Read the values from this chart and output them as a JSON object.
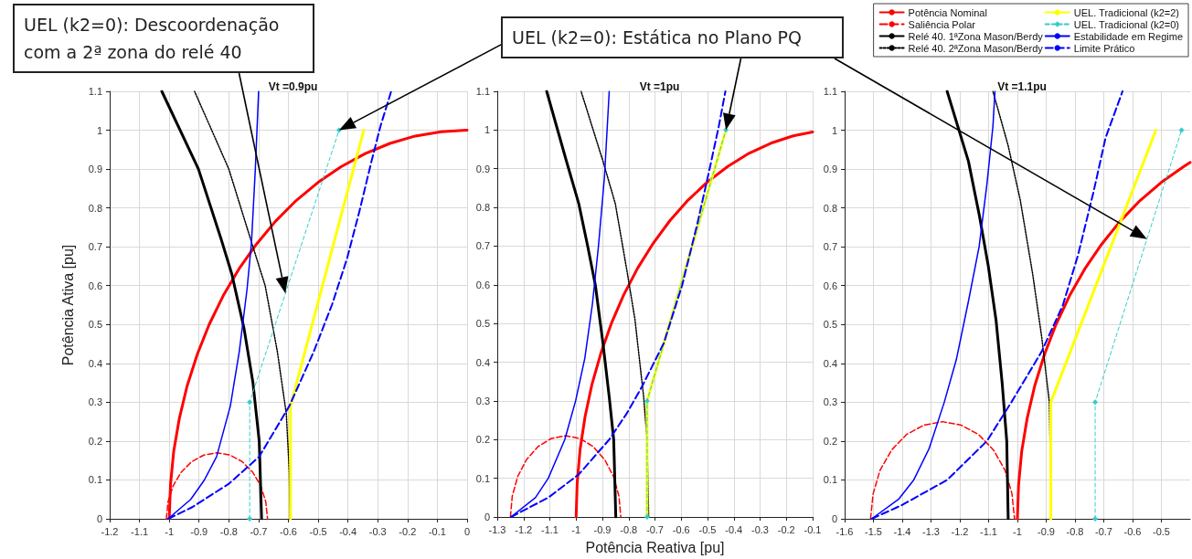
{
  "chart_data": [
    {
      "type": "line",
      "title": "Vt =0.9pu",
      "ylabel": "Potência Ativa [pu]",
      "grid": true,
      "xlim": [
        -1.2,
        0
      ],
      "ylim": [
        0,
        1.1
      ],
      "xticks": [
        -1.2,
        -1.1,
        -1,
        -0.9,
        -0.8,
        -0.7,
        -0.6,
        -0.5,
        -0.4,
        -0.3,
        -0.2,
        -0.1,
        0
      ],
      "yticks": [
        0,
        0.1,
        0.2,
        0.3,
        0.4,
        0.5,
        0.6,
        0.7,
        0.8,
        0.9,
        1,
        1.1
      ],
      "annotations": [
        "UEL (k2=0): Descoordenação com a 2ª zona do relé 40"
      ],
      "series": [
        {
          "color": "#ff0000",
          "line_style": "solid",
          "marker": "none",
          "x": [
            -1,
            -0.996,
            -0.985,
            -0.966,
            -0.94,
            -0.906,
            -0.866,
            -0.819,
            -0.766,
            -0.707,
            -0.643,
            -0.574,
            -0.5,
            -0.423,
            -0.342,
            -0.259,
            -0.174,
            -0.087,
            0
          ],
          "values": [
            0,
            0.087,
            0.174,
            0.259,
            0.342,
            0.423,
            0.5,
            0.574,
            0.643,
            0.707,
            0.766,
            0.819,
            0.866,
            0.906,
            0.94,
            0.966,
            0.985,
            0.996,
            1
          ]
        },
        {
          "color": "#ff0000",
          "line_style": "dashed",
          "marker": "none",
          "x": [
            -1.01,
            -1.004,
            -0.987,
            -0.96,
            -0.925,
            -0.884,
            -0.84,
            -0.796,
            -0.755,
            -0.72,
            -0.693,
            -0.676,
            -0.67
          ],
          "values": [
            0,
            0.044,
            0.085,
            0.12,
            0.147,
            0.164,
            0.17,
            0.164,
            0.147,
            0.12,
            0.085,
            0.044,
            0
          ]
        },
        {
          "color": "#000000",
          "line_style": "solid",
          "marker": "none",
          "x": [
            -0.69,
            -0.698,
            -0.719,
            -0.749,
            -0.79,
            -0.826,
            -0.902,
            -1.025
          ],
          "values": [
            0,
            0.2,
            0.35,
            0.49,
            0.63,
            0.72,
            0.9,
            1.1
          ]
        },
        {
          "color": "#000000",
          "line_style": "dotted",
          "marker": "none",
          "x": [
            -0.595,
            -0.597,
            -0.607,
            -0.637,
            -0.678,
            -0.719,
            -0.8,
            -0.915
          ],
          "values": [
            0,
            0.12,
            0.27,
            0.43,
            0.6,
            0.7,
            0.9,
            1.1
          ]
        },
        {
          "color": "#ffff00",
          "line_style": "solid",
          "marker": "none",
          "x": [
            -0.593,
            -0.593,
            -0.347
          ],
          "values": [
            0,
            0.29,
            1
          ]
        },
        {
          "color": "#33cccc",
          "line_style": "dashed",
          "marker": "diamond",
          "x": [
            -0.73,
            -0.73,
            -0.43
          ],
          "values": [
            0,
            0.3,
            1
          ]
        },
        {
          "color": "#0000ff",
          "line_style": "solid",
          "marker": "none",
          "x": [
            -1.004,
            -0.928,
            -0.882,
            -0.841,
            -0.795,
            -0.765,
            -0.739,
            -0.724,
            -0.711,
            -0.7
          ],
          "values": [
            0,
            0.05,
            0.1,
            0.16,
            0.29,
            0.43,
            0.59,
            0.71,
            0.9,
            1.1
          ]
        },
        {
          "color": "#0000ff",
          "line_style": "dashed",
          "marker": "none",
          "x": [
            -1.004,
            -0.923,
            -0.8,
            -0.698,
            -0.597,
            -0.515,
            -0.454,
            -0.403,
            -0.362,
            -0.321,
            -0.291,
            -0.255
          ],
          "values": [
            0,
            0.03,
            0.09,
            0.16,
            0.29,
            0.43,
            0.55,
            0.67,
            0.79,
            0.92,
            1.01,
            1.1
          ]
        }
      ]
    },
    {
      "type": "line",
      "title": "Vt =1pu",
      "xlabel": "Potência Reativa [pu]",
      "grid": true,
      "legend": "top right",
      "xlim": [
        -1.3,
        -0.1
      ],
      "ylim": [
        0,
        1.1
      ],
      "xticks": [
        -1.3,
        -1.2,
        -1.1,
        -1,
        -0.9,
        -0.8,
        -0.7,
        -0.6,
        -0.5,
        -0.4,
        -0.3,
        -0.2,
        -0.1
      ],
      "yticks": [
        0,
        0.1,
        0.2,
        0.3,
        0.4,
        0.5,
        0.6,
        0.7,
        0.8,
        0.9,
        1,
        1.1
      ],
      "annotations": [
        "UEL (k2=0): Estática no Plano PQ"
      ],
      "series": [
        {
          "name": "Potência Nominal",
          "color": "#ff0000",
          "line_style": "solid",
          "marker": "none",
          "x": [
            -1,
            -0.996,
            -0.985,
            -0.966,
            -0.94,
            -0.906,
            -0.866,
            -0.819,
            -0.766,
            -0.707,
            -0.643,
            -0.574,
            -0.5,
            -0.423,
            -0.342,
            -0.259,
            -0.174,
            -0.1
          ],
          "values": [
            0,
            0.087,
            0.174,
            0.259,
            0.342,
            0.423,
            0.5,
            0.574,
            0.643,
            0.707,
            0.766,
            0.819,
            0.866,
            0.906,
            0.94,
            0.966,
            0.985,
            0.995
          ]
        },
        {
          "name": "Saliência Polar",
          "color": "#ff0000",
          "line_style": "dashed",
          "marker": "none",
          "x": [
            -1.25,
            -1.243,
            -1.222,
            -1.189,
            -1.145,
            -1.094,
            -1.04,
            -0.986,
            -0.935,
            -0.891,
            -0.858,
            -0.837,
            -0.83
          ],
          "values": [
            0,
            0.054,
            0.105,
            0.148,
            0.182,
            0.203,
            0.21,
            0.203,
            0.182,
            0.148,
            0.105,
            0.054,
            0
          ]
        },
        {
          "name": "Relé 40. 1ªZona Mason/Berdy",
          "color": "#000000",
          "line_style": "solid",
          "marker": "none",
          "x": [
            -0.849,
            -0.857,
            -0.874,
            -0.898,
            -0.927,
            -0.956,
            -0.99,
            -1.037,
            -1.112
          ],
          "values": [
            0,
            0.2,
            0.31,
            0.45,
            0.6,
            0.7,
            0.81,
            0.92,
            1.1
          ]
        },
        {
          "name": "Relé 40. 2ªZona Mason/Berdy",
          "color": "#000000",
          "line_style": "dotted",
          "marker": "none",
          "x": [
            -0.724,
            -0.73,
            -0.743,
            -0.776,
            -0.805,
            -0.851,
            -0.898,
            -0.981
          ],
          "values": [
            0,
            0.2,
            0.31,
            0.51,
            0.63,
            0.81,
            0.92,
            1.1
          ]
        },
        {
          "name": "UEL. Tradicional (k2=2)",
          "color": "#ffff00",
          "line_style": "solid",
          "marker": "none",
          "x": [
            -0.73,
            -0.73,
            -0.43
          ],
          "values": [
            0,
            0.3,
            1
          ]
        },
        {
          "name": "UEL. Tradicional (k2=0)",
          "color": "#33cccc",
          "line_style": "dashed",
          "marker": "diamond",
          "x": [
            -0.73,
            -0.73,
            -0.43
          ],
          "values": [
            0,
            0.3,
            1
          ]
        },
        {
          "name": "Estabilidade em Regime",
          "color": "#0000ff",
          "line_style": "solid",
          "marker": "none",
          "x": [
            -1.248,
            -1.155,
            -1.106,
            -1.043,
            -1.002,
            -0.967,
            -0.938,
            -0.915,
            -0.892,
            -0.874
          ],
          "values": [
            0,
            0.05,
            0.1,
            0.2,
            0.3,
            0.41,
            0.55,
            0.7,
            0.88,
            1.1
          ]
        },
        {
          "name": "Limite Prático",
          "color": "#0000ff",
          "line_style": "dashed",
          "marker": "none",
          "x": [
            -1.248,
            -1.106,
            -0.99,
            -0.874,
            -0.805,
            -0.747,
            -0.666,
            -0.596,
            -0.538,
            -0.492,
            -0.457,
            -0.432
          ],
          "values": [
            0,
            0.05,
            0.11,
            0.2,
            0.27,
            0.34,
            0.45,
            0.6,
            0.76,
            0.9,
            1.01,
            1.1
          ]
        }
      ]
    },
    {
      "type": "line",
      "title": "Vt =1.1pu",
      "grid": true,
      "xlim": [
        -1.6,
        -0.4
      ],
      "ylim": [
        0,
        1.1
      ],
      "xticks": [
        -1.6,
        -1.5,
        -1.4,
        -1.3,
        -1.2,
        -1.1,
        -1,
        -0.9,
        -0.8,
        -0.7,
        -0.6,
        -0.5
      ],
      "yticks": [
        0,
        0.1,
        0.2,
        0.3,
        0.4,
        0.5,
        0.6,
        0.7,
        0.8,
        0.9,
        1,
        1.1
      ],
      "series": [
        {
          "color": "#ff0000",
          "line_style": "solid",
          "marker": "none",
          "x": [
            -1,
            -0.996,
            -0.985,
            -0.966,
            -0.94,
            -0.906,
            -0.866,
            -0.819,
            -0.766,
            -0.707,
            -0.643,
            -0.574,
            -0.5,
            -0.423,
            -0.4
          ],
          "values": [
            0,
            0.087,
            0.174,
            0.259,
            0.342,
            0.423,
            0.5,
            0.574,
            0.643,
            0.707,
            0.766,
            0.819,
            0.866,
            0.906,
            0.917
          ]
        },
        {
          "color": "#ff0000",
          "line_style": "dashed",
          "marker": "none",
          "x": [
            -1.51,
            -1.501,
            -1.477,
            -1.437,
            -1.385,
            -1.325,
            -1.26,
            -1.195,
            -1.135,
            -1.083,
            -1.043,
            -1.019,
            -1.01
          ],
          "values": [
            0,
            0.065,
            0.125,
            0.177,
            0.217,
            0.241,
            0.25,
            0.241,
            0.217,
            0.177,
            0.125,
            0.065,
            0
          ]
        },
        {
          "color": "#000000",
          "line_style": "solid",
          "marker": "none",
          "x": [
            -1.032,
            -1.037,
            -1.053,
            -1.074,
            -1.101,
            -1.132,
            -1.17,
            -1.244
          ],
          "values": [
            0,
            0.2,
            0.35,
            0.51,
            0.65,
            0.78,
            0.92,
            1.1
          ]
        },
        {
          "color": "#000000",
          "line_style": "dotted",
          "marker": "none",
          "x": [
            -0.882,
            -0.889,
            -0.916,
            -0.947,
            -0.99,
            -1.032,
            -1.085
          ],
          "values": [
            0,
            0.3,
            0.47,
            0.63,
            0.82,
            0.96,
            1.1
          ]
        },
        {
          "color": "#ffff00",
          "line_style": "solid",
          "marker": "none",
          "x": [
            -0.884,
            -0.884,
            -0.519
          ],
          "values": [
            0,
            0.3,
            1
          ]
        },
        {
          "color": "#33cccc",
          "line_style": "dashed",
          "marker": "diamond",
          "x": [
            -0.73,
            -0.73,
            -0.43
          ],
          "values": [
            0,
            0.3,
            1
          ]
        },
        {
          "color": "#0000ff",
          "line_style": "solid",
          "marker": "none",
          "x": [
            -1.506,
            -1.413,
            -1.36,
            -1.307,
            -1.254,
            -1.212,
            -1.17,
            -1.133,
            -1.106,
            -1.085,
            -1.078
          ],
          "values": [
            0,
            0.05,
            0.1,
            0.18,
            0.3,
            0.41,
            0.56,
            0.7,
            0.86,
            1.01,
            1.1
          ]
        },
        {
          "color": "#0000ff",
          "line_style": "dashed",
          "marker": "none",
          "x": [
            -1.506,
            -1.402,
            -1.244,
            -1.106,
            -1.021,
            -0.916,
            -0.842,
            -0.789,
            -0.736,
            -0.694,
            -0.635
          ],
          "values": [
            0,
            0.035,
            0.1,
            0.2,
            0.3,
            0.43,
            0.55,
            0.68,
            0.84,
            0.98,
            1.1
          ]
        }
      ]
    }
  ]
}
